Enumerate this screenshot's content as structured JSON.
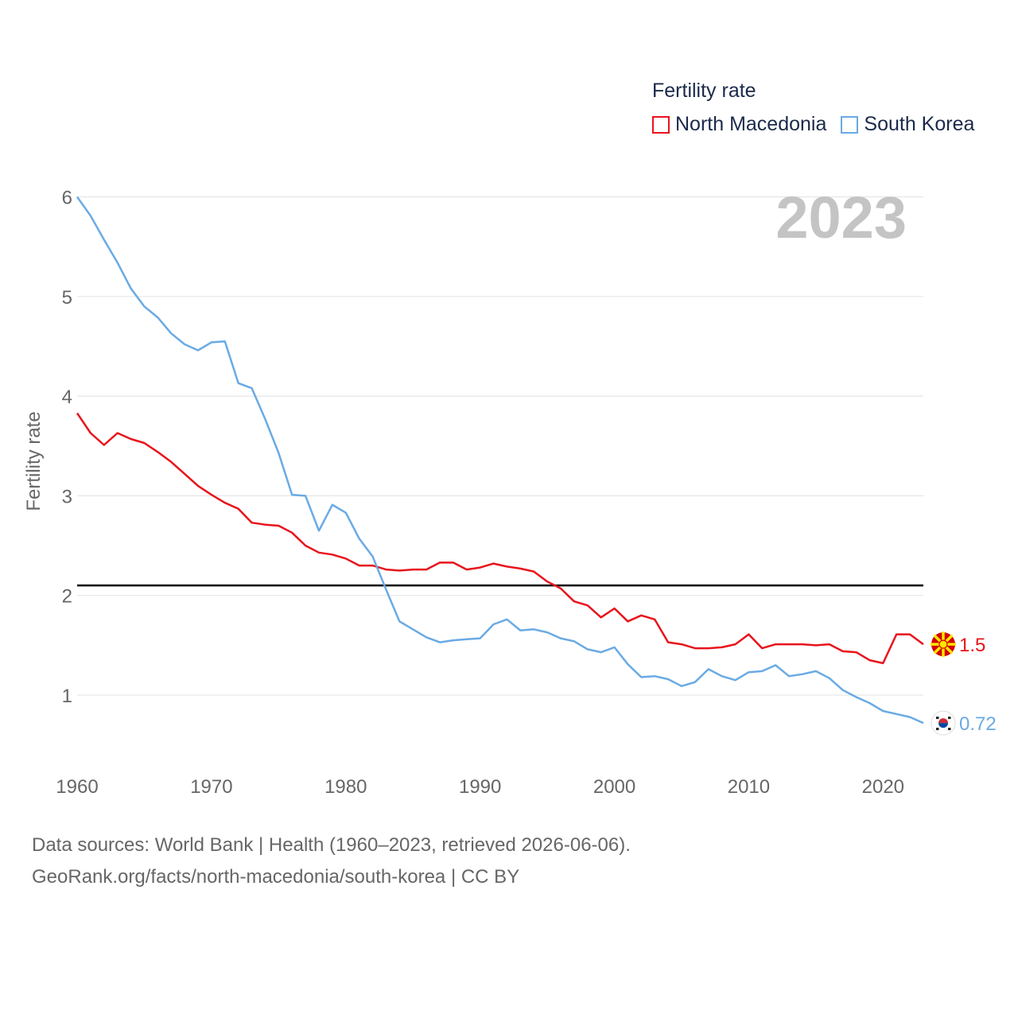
{
  "legend": {
    "title": "Fertility rate",
    "items": [
      {
        "label": "North Macedonia",
        "color": "#e8141c"
      },
      {
        "label": "South Korea",
        "color": "#6aaae4"
      }
    ]
  },
  "footer": {
    "line1": "Data sources: World Bank | Health (1960–2023, retrieved 2026-06-06).",
    "line2": "GeoRank.org/facts/north-macedonia/south-korea | CC BY"
  },
  "chart_data": {
    "type": "line",
    "title": "Fertility rate",
    "year_label": "2023",
    "ylabel": "Fertility rate",
    "xlabel": "",
    "xlim": [
      1960,
      2023
    ],
    "ylim": [
      0.5,
      6
    ],
    "x_ticks": [
      1960,
      1970,
      1980,
      1990,
      2000,
      2010,
      2020
    ],
    "y_ticks": [
      1,
      2,
      3,
      4,
      5,
      6
    ],
    "grid": true,
    "reference_line": {
      "value": 2.1,
      "color": "#000000"
    },
    "x": [
      1960,
      1961,
      1962,
      1963,
      1964,
      1965,
      1966,
      1967,
      1968,
      1969,
      1970,
      1971,
      1972,
      1973,
      1974,
      1975,
      1976,
      1977,
      1978,
      1979,
      1980,
      1981,
      1982,
      1983,
      1984,
      1985,
      1986,
      1987,
      1988,
      1989,
      1990,
      1991,
      1992,
      1993,
      1994,
      1995,
      1996,
      1997,
      1998,
      1999,
      2000,
      2001,
      2002,
      2003,
      2004,
      2005,
      2006,
      2007,
      2008,
      2009,
      2010,
      2011,
      2012,
      2013,
      2014,
      2015,
      2016,
      2017,
      2018,
      2019,
      2020,
      2021,
      2022,
      2023
    ],
    "series": [
      {
        "name": "North Macedonia",
        "color": "#e8141c",
        "end_label": "1.5",
        "values": [
          3.83,
          3.63,
          3.51,
          3.63,
          3.57,
          3.53,
          3.44,
          3.34,
          3.22,
          3.1,
          3.01,
          2.93,
          2.87,
          2.73,
          2.71,
          2.7,
          2.63,
          2.5,
          2.43,
          2.41,
          2.37,
          2.3,
          2.3,
          2.26,
          2.25,
          2.26,
          2.26,
          2.33,
          2.33,
          2.26,
          2.28,
          2.32,
          2.29,
          2.27,
          2.24,
          2.14,
          2.07,
          1.94,
          1.9,
          1.78,
          1.87,
          1.74,
          1.8,
          1.76,
          1.53,
          1.51,
          1.47,
          1.47,
          1.48,
          1.51,
          1.61,
          1.47,
          1.51,
          1.51,
          1.51,
          1.5,
          1.51,
          1.44,
          1.43,
          1.35,
          1.32,
          1.61,
          1.61,
          1.51
        ]
      },
      {
        "name": "South Korea",
        "color": "#6aaae4",
        "end_label": "0.72",
        "values": [
          6.0,
          5.81,
          5.57,
          5.34,
          5.08,
          4.9,
          4.79,
          4.63,
          4.52,
          4.46,
          4.54,
          4.55,
          4.13,
          4.08,
          3.77,
          3.43,
          3.01,
          3.0,
          2.65,
          2.91,
          2.83,
          2.57,
          2.39,
          2.06,
          1.74,
          1.66,
          1.58,
          1.53,
          1.55,
          1.56,
          1.57,
          1.71,
          1.76,
          1.65,
          1.66,
          1.63,
          1.57,
          1.54,
          1.46,
          1.43,
          1.48,
          1.31,
          1.18,
          1.19,
          1.16,
          1.09,
          1.13,
          1.26,
          1.19,
          1.15,
          1.23,
          1.24,
          1.3,
          1.19,
          1.21,
          1.24,
          1.17,
          1.05,
          0.98,
          0.92,
          0.84,
          0.81,
          0.78,
          0.72
        ]
      }
    ]
  }
}
